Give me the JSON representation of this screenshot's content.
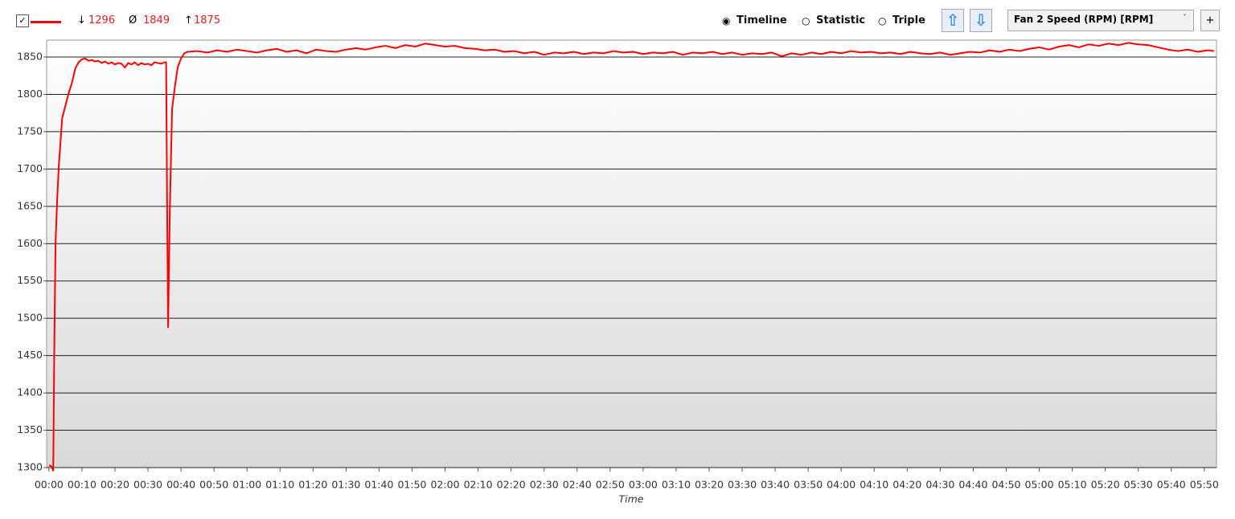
{
  "toolbar": {
    "min_symbol": "↓",
    "min": "1296",
    "avg_symbol": "Ø",
    "avg": "1849",
    "max_symbol": "↑",
    "max": "1875",
    "modes": [
      "Timeline",
      "Statistic",
      "Triple"
    ],
    "sensor": "Fan 2 Speed (RPM) [RPM]",
    "add_button": "+"
  },
  "chart_data": {
    "type": "line",
    "x_label": "Time",
    "grid": true,
    "x": [
      0,
      0.7,
      1.3,
      1.6,
      2,
      2.5,
      3,
      4,
      5,
      6,
      7,
      8,
      9,
      10,
      11,
      12,
      13,
      14,
      15,
      16,
      17,
      18,
      19,
      20,
      21,
      22,
      23,
      24,
      25,
      26,
      27,
      28,
      29,
      30,
      31,
      32,
      33,
      34,
      35,
      35.5,
      35.8,
      36.1,
      36.6,
      37.3,
      38.2,
      39,
      40,
      41,
      42,
      45,
      48,
      51,
      54,
      57,
      60,
      63,
      66,
      69,
      72,
      75,
      78,
      81,
      84,
      87,
      90,
      93,
      96,
      99,
      102,
      105,
      108,
      111,
      114,
      117,
      120,
      123,
      126,
      129,
      132,
      135,
      138,
      141,
      144,
      147,
      150,
      153,
      156,
      159,
      162,
      165,
      168,
      171,
      174,
      177,
      180,
      183,
      186,
      189,
      192,
      195,
      198,
      201,
      204,
      207,
      210,
      213,
      216,
      219,
      222,
      225,
      228,
      231,
      234,
      237,
      240,
      243,
      246,
      249,
      252,
      255,
      258,
      261,
      264,
      267,
      270,
      273,
      276,
      279,
      282,
      285,
      288,
      291,
      294,
      297,
      300,
      303,
      306,
      309,
      312,
      315,
      318,
      321,
      324,
      327,
      330,
      333,
      336,
      339,
      342,
      345,
      348,
      351,
      353
    ],
    "series": [
      {
        "color": "#ff0000",
        "values": [
          1303,
          1302,
          1296,
          1450,
          1600,
          1660,
          1705,
          1768,
          1785,
          1802,
          1816,
          1835,
          1843,
          1847,
          1848,
          1845,
          1846,
          1844,
          1845,
          1842,
          1844,
          1841,
          1843,
          1840,
          1842,
          1841,
          1836,
          1842,
          1840,
          1843,
          1839,
          1842,
          1840,
          1841,
          1839,
          1843,
          1842,
          1841,
          1843,
          1843,
          1650,
          1488,
          1640,
          1780,
          1812,
          1836,
          1848,
          1855,
          1857,
          1858,
          1856,
          1859,
          1857,
          1860,
          1858,
          1856,
          1859,
          1861,
          1857,
          1859,
          1855,
          1860,
          1858,
          1857,
          1860,
          1862,
          1860,
          1863,
          1865,
          1862,
          1866,
          1864,
          1868,
          1866,
          1864,
          1865,
          1862,
          1861,
          1859,
          1860,
          1857,
          1858,
          1855,
          1857,
          1853,
          1856,
          1855,
          1857,
          1854,
          1856,
          1855,
          1858,
          1856,
          1857,
          1854,
          1856,
          1855,
          1857,
          1853,
          1856,
          1855,
          1857,
          1854,
          1856,
          1853,
          1855,
          1854,
          1856,
          1851,
          1855,
          1853,
          1856,
          1854,
          1857,
          1855,
          1858,
          1856,
          1857,
          1855,
          1856,
          1854,
          1857,
          1855,
          1854,
          1856,
          1853,
          1855,
          1857,
          1856,
          1859,
          1857,
          1860,
          1858,
          1861,
          1863,
          1860,
          1864,
          1866,
          1863,
          1867,
          1865,
          1868,
          1866,
          1869,
          1867,
          1866,
          1863,
          1860,
          1858,
          1860,
          1857,
          1859,
          1858
        ]
      }
    ],
    "xlim": [
      -0.7,
      353.7
    ],
    "xticks": [
      {
        "value": 0,
        "label": "00:00"
      },
      {
        "value": 10,
        "label": "00:10"
      },
      {
        "value": 20,
        "label": "00:20"
      },
      {
        "value": 30,
        "label": "00:30"
      },
      {
        "value": 40,
        "label": "00:40"
      },
      {
        "value": 50,
        "label": "00:50"
      },
      {
        "value": 60,
        "label": "01:00"
      },
      {
        "value": 70,
        "label": "01:10"
      },
      {
        "value": 80,
        "label": "01:20"
      },
      {
        "value": 90,
        "label": "01:30"
      },
      {
        "value": 100,
        "label": "01:40"
      },
      {
        "value": 110,
        "label": "01:50"
      },
      {
        "value": 120,
        "label": "02:00"
      },
      {
        "value": 130,
        "label": "02:10"
      },
      {
        "value": 140,
        "label": "02:20"
      },
      {
        "value": 150,
        "label": "02:30"
      },
      {
        "value": 160,
        "label": "02:40"
      },
      {
        "value": 170,
        "label": "02:50"
      },
      {
        "value": 180,
        "label": "03:00"
      },
      {
        "value": 190,
        "label": "03:10"
      },
      {
        "value": 200,
        "label": "03:20"
      },
      {
        "value": 210,
        "label": "03:30"
      },
      {
        "value": 220,
        "label": "03:40"
      },
      {
        "value": 230,
        "label": "03:50"
      },
      {
        "value": 240,
        "label": "04:00"
      },
      {
        "value": 250,
        "label": "04:10"
      },
      {
        "value": 260,
        "label": "04:20"
      },
      {
        "value": 270,
        "label": "04:30"
      },
      {
        "value": 280,
        "label": "04:40"
      },
      {
        "value": 290,
        "label": "04:50"
      },
      {
        "value": 300,
        "label": "05:00"
      },
      {
        "value": 310,
        "label": "05:10"
      },
      {
        "value": 320,
        "label": "05:20"
      },
      {
        "value": 330,
        "label": "05:30"
      },
      {
        "value": 340,
        "label": "05:40"
      },
      {
        "value": 350,
        "label": "05:50"
      }
    ],
    "ylim": [
      1300,
      1872.6
    ],
    "yticks": [
      1300,
      1350,
      1400,
      1450,
      1500,
      1550,
      1600,
      1650,
      1700,
      1750,
      1800,
      1850
    ]
  }
}
